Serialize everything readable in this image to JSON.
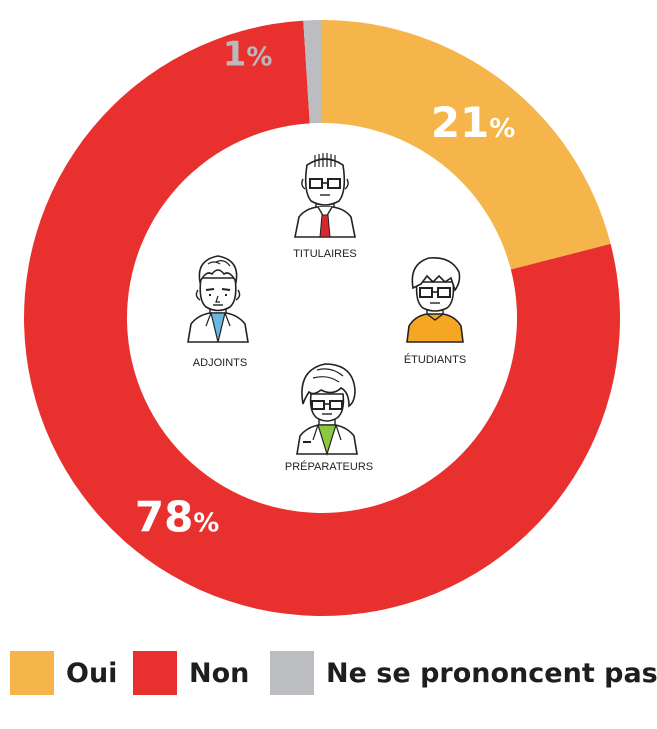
{
  "chart_data": {
    "type": "pie",
    "donut": true,
    "categories": [
      "Oui",
      "Non",
      "Ne se prononcent pas"
    ],
    "values": [
      21,
      78,
      1
    ],
    "value_labels": [
      "21",
      "78",
      "1"
    ],
    "unit_suffix": "%",
    "colors": [
      "#f5b54a",
      "#e8312f",
      "#bcbdc0"
    ],
    "legend_position": "bottom",
    "center_labels": [
      "TITULAIRES",
      "ÉTUDIANTS",
      "ADJOINTS",
      "PRÉPARATEURS"
    ]
  },
  "legend": {
    "items": [
      {
        "label": "Oui",
        "color": "#f5b54a"
      },
      {
        "label": "Non",
        "color": "#e8312f"
      },
      {
        "label": "Ne se prononcent pas",
        "color": "#bcbdc0"
      }
    ]
  },
  "icons": [
    "titulaire-icon",
    "etudiant-icon",
    "adjoint-icon",
    "preparateur-icon"
  ]
}
